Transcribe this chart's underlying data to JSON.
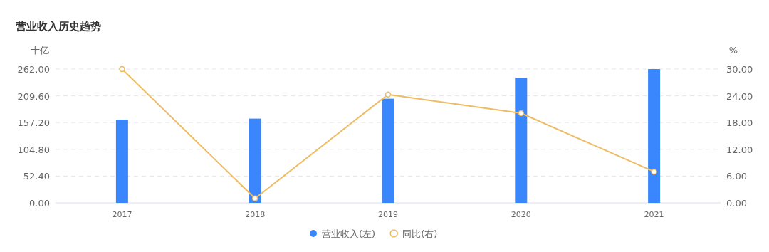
{
  "chart_data": {
    "type": "bar",
    "title": "营业收入历史趋势",
    "ylabel": "十亿",
    "y2label": "%",
    "categories": [
      "2017",
      "2018",
      "2019",
      "2020",
      "2021"
    ],
    "series": [
      {
        "name": "营业收入(左)",
        "color": "#3a87fd",
        "values": [
          163,
          165,
          204,
          245,
          262
        ]
      },
      {
        "name": "同比(右)",
        "type": "line",
        "axis": "y2",
        "color": "#edbc64",
        "marker": "circle",
        "values": [
          30,
          1,
          24.3,
          20.1,
          7
        ]
      }
    ],
    "ylim": [
      0,
      262
    ],
    "yticks": [
      {
        "value": 0,
        "label": "0.00"
      },
      {
        "value": 52.4,
        "label": "52.40"
      },
      {
        "value": 104.8,
        "label": "104.80"
      },
      {
        "value": 157.2,
        "label": "157.20"
      },
      {
        "value": 209.6,
        "label": "209.60"
      },
      {
        "value": 262,
        "label": "262.00"
      }
    ],
    "y2lim": [
      0,
      30
    ],
    "y2ticks": [
      {
        "value": 0,
        "label": "0.00"
      },
      {
        "value": 6,
        "label": "6.00"
      },
      {
        "value": 12,
        "label": "12.00"
      },
      {
        "value": 18,
        "label": "18.00"
      },
      {
        "value": 24,
        "label": "24.00"
      },
      {
        "value": 30,
        "label": "30.00"
      }
    ],
    "grid": "y",
    "legend": "bottom"
  }
}
